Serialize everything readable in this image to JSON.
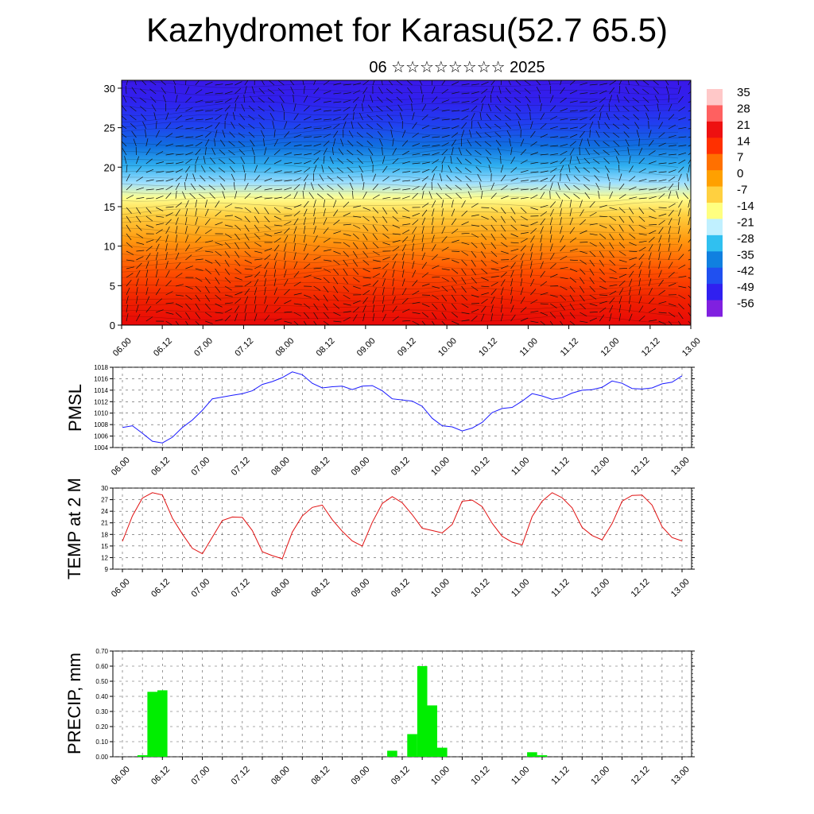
{
  "header": {
    "title": "Kazhydromet for Karasu(52.7 65.5)",
    "subtitle": "06 ☆☆☆☆☆☆☆☆ 2025"
  },
  "colors": {
    "pmsl_line": "#1a1aff",
    "temp_line": "#e01010",
    "precip_bar": "#00ee00",
    "grid": "#555555"
  },
  "chart_data": [
    {
      "type": "heatmap",
      "name": "vertical-cross-section",
      "y_ticks": [
        0,
        5,
        10,
        15,
        20,
        25,
        30
      ],
      "ylim": [
        0,
        31
      ],
      "x_ticks": [
        "06.00",
        "06.12",
        "07.00",
        "07.12",
        "08.00",
        "08.12",
        "09.00",
        "09.12",
        "10.00",
        "10.12",
        "11.00",
        "11.12",
        "12.00",
        "12.12",
        "13.00"
      ],
      "colorbar_labels": [
        "35",
        "28",
        "21",
        "14",
        "7",
        "0",
        "-7",
        "-14",
        "-21",
        "-28",
        "-35",
        "-42",
        "-49",
        "-56"
      ],
      "colorbar_colors": [
        "#ffc8c8",
        "#ff6060",
        "#ee1010",
        "#ff3000",
        "#ff7000",
        "#ffa000",
        "#ffd040",
        "#ffff80",
        "#c0f0ff",
        "#30c0f0",
        "#1080e0",
        "#2050f0",
        "#3020f0",
        "#8020e0"
      ]
    },
    {
      "type": "line",
      "name": "pmsl",
      "ylabel": "PMSL",
      "ylim": [
        1004,
        1018
      ],
      "y_ticks": [
        "1004",
        "1006",
        "1008",
        "1010",
        "1012",
        "1014",
        "1016",
        "1018"
      ],
      "x_ticks": [
        "06.00",
        "06.12",
        "07.00",
        "07.12",
        "08.00",
        "08.12",
        "09.00",
        "09.12",
        "10.00",
        "10.12",
        "11.00",
        "11.12",
        "12.00",
        "12.12",
        "13.00"
      ],
      "x_hours": [
        0,
        3,
        6,
        9,
        12,
        15,
        18,
        21,
        24,
        27,
        30,
        33,
        36,
        39,
        42,
        45,
        48,
        51,
        54,
        57,
        60,
        63,
        66,
        69,
        72,
        75,
        78,
        81,
        84,
        87,
        90,
        93,
        96,
        99,
        102,
        105,
        108,
        111,
        114,
        117,
        120,
        123,
        126,
        129,
        132,
        135,
        138,
        141,
        144,
        147,
        150,
        153,
        156,
        159,
        162,
        165,
        168
      ],
      "values": [
        1007.5,
        1007.8,
        1006.5,
        1005.1,
        1004.8,
        1005.8,
        1007.5,
        1008.8,
        1010.5,
        1012.5,
        1012.8,
        1013.1,
        1013.4,
        1013.9,
        1015.0,
        1015.5,
        1016.2,
        1017.2,
        1016.7,
        1015.2,
        1014.4,
        1014.6,
        1014.7,
        1014.1,
        1014.7,
        1014.8,
        1013.9,
        1012.5,
        1012.3,
        1012.1,
        1011.2,
        1009.1,
        1007.8,
        1007.6,
        1006.9,
        1007.4,
        1008.4,
        1010.1,
        1010.8,
        1011.0,
        1012.1,
        1013.4,
        1013.0,
        1012.4,
        1012.7,
        1013.5,
        1014.0,
        1014.1,
        1014.5,
        1015.6,
        1015.2,
        1014.3,
        1014.2,
        1014.4,
        1015.1,
        1015.4,
        1016.5
      ]
    },
    {
      "type": "line",
      "name": "temp",
      "ylabel": "TEMP at 2 M",
      "ylim": [
        9,
        30
      ],
      "y_ticks": [
        "9",
        "12",
        "15",
        "18",
        "21",
        "24",
        "27",
        "30"
      ],
      "x_ticks": [
        "06.00",
        "06.12",
        "07.00",
        "07.12",
        "08.00",
        "08.12",
        "09.00",
        "09.12",
        "10.00",
        "10.12",
        "11.00",
        "11.12",
        "12.00",
        "12.12",
        "13.00"
      ],
      "x_hours": [
        0,
        3,
        6,
        9,
        12,
        15,
        18,
        21,
        24,
        27,
        30,
        33,
        36,
        39,
        42,
        45,
        48,
        51,
        54,
        57,
        60,
        63,
        66,
        69,
        72,
        75,
        78,
        81,
        84,
        87,
        90,
        93,
        96,
        99,
        102,
        105,
        108,
        111,
        114,
        117,
        120,
        123,
        126,
        129,
        132,
        135,
        138,
        141,
        144,
        147,
        150,
        153,
        156,
        159,
        162,
        165,
        168
      ],
      "values": [
        16.2,
        22.8,
        27.4,
        28.8,
        28.2,
        22.2,
        18.1,
        14.4,
        13.0,
        17.3,
        21.6,
        22.5,
        22.4,
        19.0,
        13.5,
        12.5,
        11.7,
        18.6,
        22.8,
        25.0,
        25.6,
        21.8,
        18.8,
        16.3,
        15.0,
        21.1,
        26.0,
        27.8,
        26.2,
        23.1,
        19.6,
        19.0,
        18.4,
        20.6,
        26.6,
        26.9,
        25.2,
        20.9,
        17.5,
        16.0,
        15.3,
        22.6,
        26.6,
        28.8,
        27.5,
        24.9,
        19.8,
        17.7,
        16.6,
        20.8,
        26.6,
        28.1,
        28.2,
        25.6,
        20.0,
        17.2,
        16.3
      ]
    },
    {
      "type": "bar",
      "name": "precip",
      "ylabel": "PRECIP, mm",
      "ylim": [
        0,
        0.7
      ],
      "y_ticks": [
        "0.00",
        "0.10",
        "0.20",
        "0.30",
        "0.40",
        "0.50",
        "0.60",
        "0.70"
      ],
      "x_ticks": [
        "06.00",
        "06.12",
        "07.00",
        "07.12",
        "08.00",
        "08.12",
        "09.00",
        "09.12",
        "10.00",
        "10.12",
        "11.00",
        "11.12",
        "12.00",
        "12.12",
        "13.00"
      ],
      "x_hours": [
        6,
        9,
        12,
        81,
        87,
        90,
        93,
        96,
        123,
        126
      ],
      "values": [
        0.01,
        0.43,
        0.44,
        0.04,
        0.15,
        0.6,
        0.34,
        0.06,
        0.03,
        0.01
      ]
    }
  ]
}
